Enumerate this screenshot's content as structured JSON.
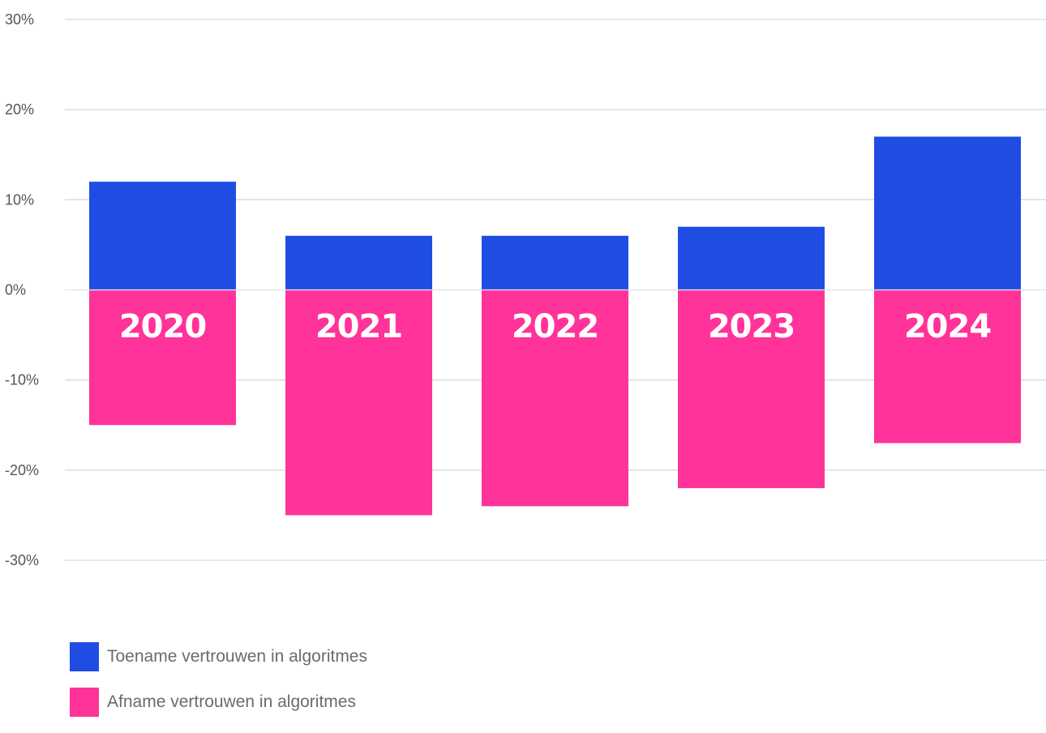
{
  "chart_data": {
    "type": "bar",
    "categories": [
      "2020",
      "2021",
      "2022",
      "2023",
      "2024"
    ],
    "series": [
      {
        "name": "Toename vertrouwen in algoritmes",
        "color": "#1f4de4",
        "values": [
          12,
          6,
          6,
          7,
          17
        ]
      },
      {
        "name": "Afname vertrouwen in algoritmes",
        "color": "#ff3399",
        "values": [
          -15,
          -25,
          -24,
          -22,
          -17
        ]
      }
    ],
    "ylim": [
      -30,
      30
    ],
    "yticks": [
      30,
      20,
      10,
      0,
      -10,
      -20,
      -30
    ],
    "ytick_labels": [
      "30%",
      "20%",
      "10%",
      "0%",
      "-10%",
      "-20%",
      "-30%"
    ],
    "category_labels_inside_bars": true,
    "grid": true,
    "legend_position": "bottom-left",
    "title": "",
    "xlabel": "",
    "ylabel": ""
  }
}
